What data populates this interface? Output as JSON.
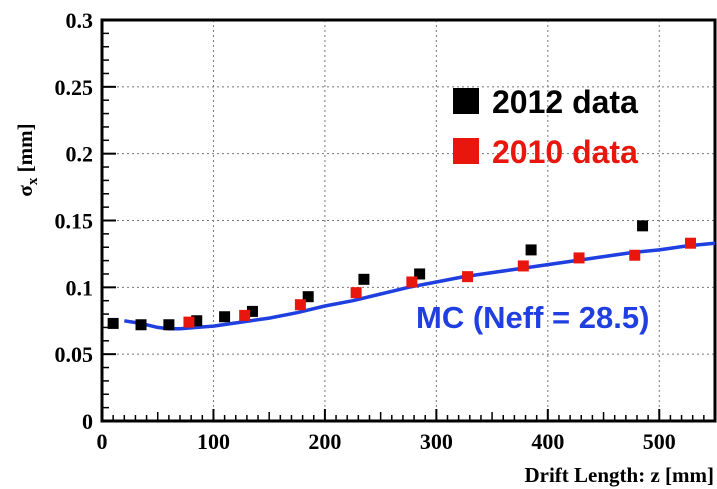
{
  "chart_data": {
    "type": "scatter",
    "xlabel": "Drift Length: z [mm]",
    "ylabel_main": "σ",
    "ylabel_sub": "x",
    "ylabel_unit": " [mm]",
    "xlim": [
      0,
      550
    ],
    "ylim": [
      0,
      0.3
    ],
    "x_ticks": [
      0,
      100,
      200,
      300,
      400,
      500
    ],
    "x_tick_labels": [
      "0",
      "100",
      "200",
      "300",
      "400",
      "500"
    ],
    "y_ticks": [
      0,
      0.05,
      0.1,
      0.15,
      0.2,
      0.25,
      0.3
    ],
    "y_tick_labels": [
      "0",
      "0.05",
      "0.1",
      "0.15",
      "0.2",
      "0.25",
      "0.3"
    ],
    "grid": true,
    "legend_position": "top-right",
    "series": [
      {
        "name": "2012 data",
        "color": "#000000",
        "marker": "square",
        "x": [
          10,
          35,
          60,
          85,
          110,
          135,
          185,
          235,
          285,
          385,
          485
        ],
        "y": [
          0.073,
          0.072,
          0.072,
          0.075,
          0.078,
          0.082,
          0.093,
          0.106,
          0.11,
          0.128,
          0.146
        ]
      },
      {
        "name": "2010 data",
        "color": "#e8160c",
        "marker": "square",
        "x": [
          78,
          128,
          178,
          228,
          278,
          328,
          378,
          428,
          478,
          528
        ],
        "y": [
          0.074,
          0.079,
          0.087,
          0.096,
          0.104,
          0.108,
          0.116,
          0.122,
          0.124,
          0.133
        ]
      },
      {
        "name": "MC (Neff = 28.5)",
        "color": "#1f3fe0",
        "marker": "line",
        "x": [
          20,
          35,
          50,
          60,
          70,
          85,
          100,
          125,
          150,
          175,
          200,
          225,
          250,
          275,
          300,
          325,
          350,
          375,
          400,
          425,
          450,
          475,
          500,
          525,
          550
        ],
        "y": [
          0.075,
          0.073,
          0.07,
          0.069,
          0.069,
          0.07,
          0.071,
          0.074,
          0.077,
          0.081,
          0.086,
          0.09,
          0.095,
          0.1,
          0.104,
          0.108,
          0.111,
          0.114,
          0.117,
          0.12,
          0.123,
          0.126,
          0.128,
          0.131,
          0.133
        ]
      }
    ],
    "annotation": "MC (Neff = 28.5)"
  }
}
